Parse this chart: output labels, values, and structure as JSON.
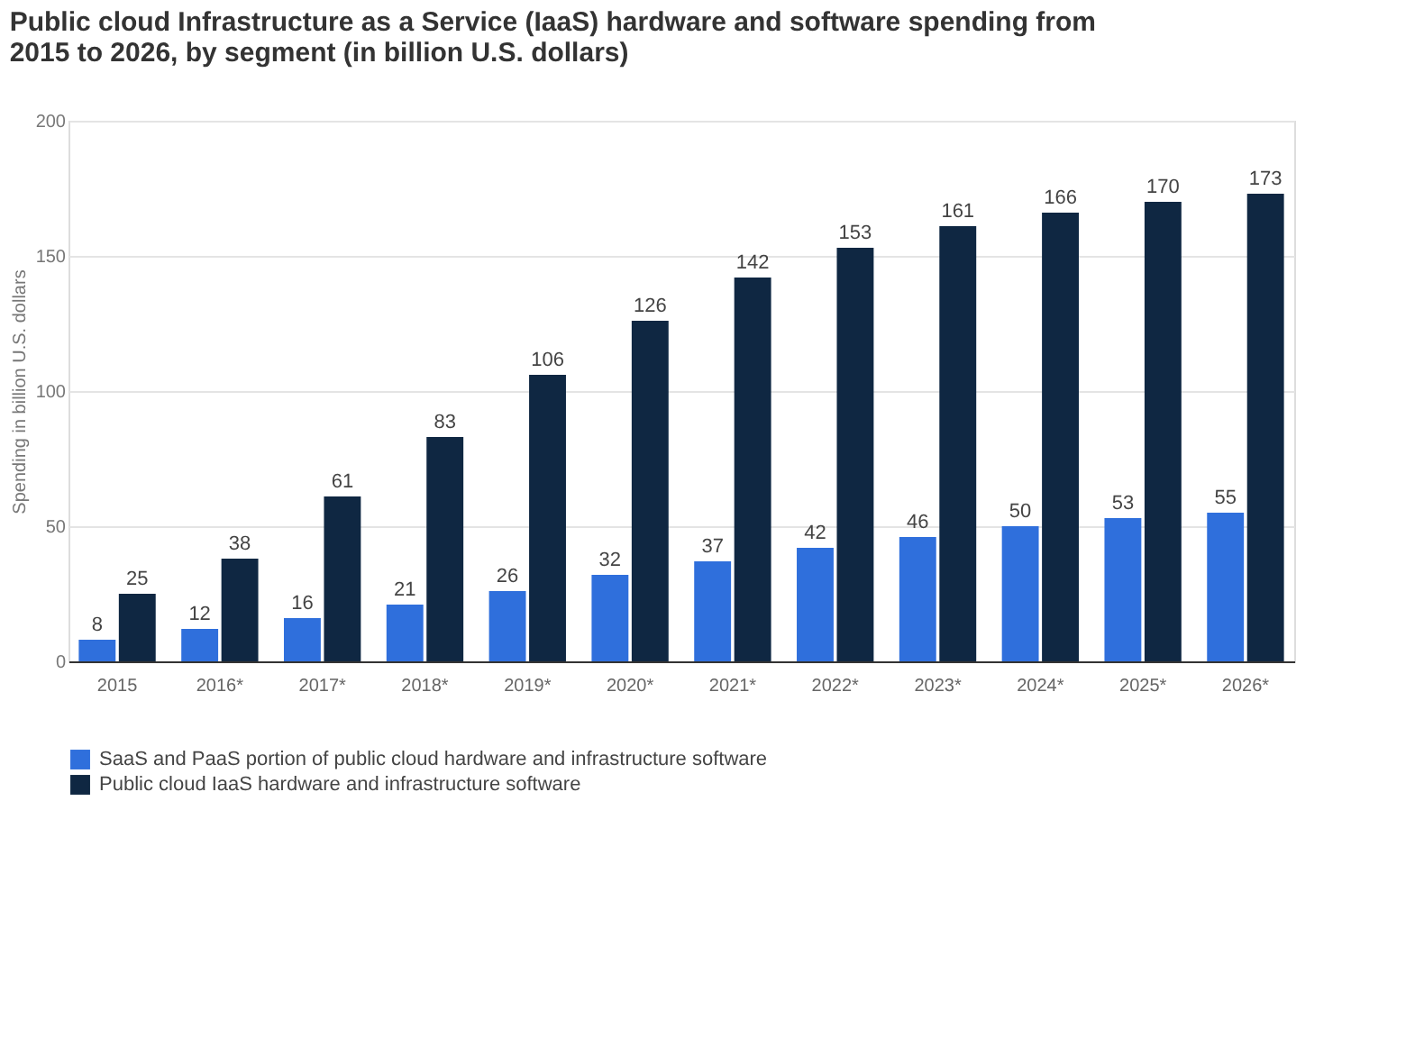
{
  "chart_data": {
    "type": "bar",
    "title": "Public cloud Infrastructure as a Service (IaaS) hardware and software spending from 2015 to 2026, by segment (in billion U.S. dollars)",
    "ylabel": "Spending in billion U.S. dollars",
    "categories": [
      "2015",
      "2016*",
      "2017*",
      "2018*",
      "2019*",
      "2020*",
      "2021*",
      "2022*",
      "2023*",
      "2024*",
      "2025*",
      "2026*"
    ],
    "series": [
      {
        "name": "SaaS and PaaS portion of public cloud hardware and infrastructure software",
        "color": "#2f6fdc",
        "values": [
          8,
          12,
          16,
          21,
          26,
          32,
          37,
          42,
          46,
          50,
          53,
          55
        ]
      },
      {
        "name": "Public cloud IaaS hardware and infrastructure software",
        "color": "#0f2742",
        "values": [
          25,
          38,
          61,
          83,
          106,
          126,
          142,
          153,
          161,
          166,
          170,
          173
        ]
      }
    ],
    "ylim": [
      0,
      200
    ],
    "yticks": [
      0,
      50,
      100,
      150,
      200
    ],
    "grid": "y",
    "legend": "bottom",
    "data_labels": true
  }
}
